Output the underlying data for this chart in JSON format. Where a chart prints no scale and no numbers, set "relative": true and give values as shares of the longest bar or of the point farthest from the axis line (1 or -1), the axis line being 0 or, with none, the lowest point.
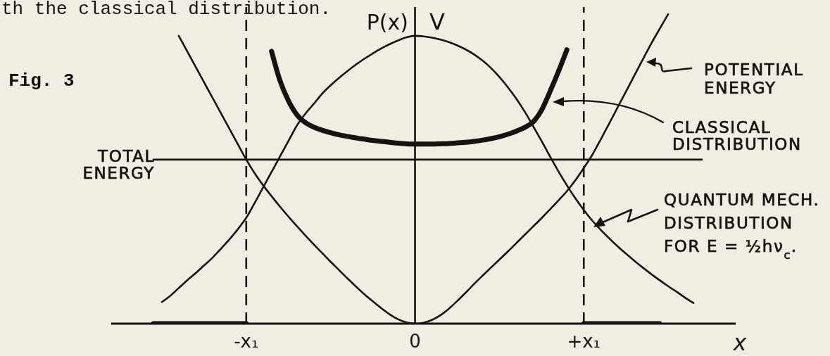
{
  "chart_data": {
    "type": "line",
    "relative": true,
    "legend": "right",
    "annotations": [
      "th the classical distribution.",
      "Fig. 3",
      "V"
    ],
    "ylabel": "P(x)",
    "xlabel": "x",
    "categories": [
      null,
      null,
      null,
      null,
      null,
      null,
      null,
      null,
      null,
      null,
      null,
      null,
      null,
      null,
      null,
      null,
      "-x₁",
      null,
      null,
      null,
      null,
      null,
      null,
      null,
      null,
      null,
      null,
      null,
      null,
      null,
      null,
      null,
      null,
      null,
      null,
      null,
      "0",
      null,
      null,
      null,
      null,
      null,
      null,
      null,
      null,
      null,
      null,
      null,
      null,
      null,
      null,
      null,
      null,
      null,
      null,
      null,
      "+x₁",
      null,
      null,
      null,
      null,
      null,
      null,
      null,
      null,
      null,
      null,
      null,
      null,
      null,
      null,
      null,
      null,
      null,
      null
    ],
    "series": [
      {
        "name": "POTENTIAL ENERGY",
        "color": "#151311",
        "values": [
          null,
          null,
          null,
          null,
          null,
          null,
          null,
          null,
          0.93,
          0.88,
          0.83,
          0.78,
          0.73,
          0.68,
          0.63,
          0.58,
          0.53,
          0.486,
          0.447,
          0.412,
          0.378,
          0.346,
          0.315,
          0.285,
          0.256,
          0.228,
          0.2,
          0.173,
          0.146,
          0.12,
          0.095,
          0.072,
          0.05,
          0.03,
          0.014,
          0.004,
          0,
          0.003,
          0.012,
          0.027,
          0.048,
          0.073,
          0.1,
          0.128,
          0.155,
          0.181,
          0.207,
          0.233,
          0.26,
          0.287,
          0.314,
          0.341,
          0.369,
          0.398,
          0.428,
          0.463,
          0.503,
          0.545,
          0.595,
          0.646,
          0.698,
          0.75,
          0.802,
          0.854,
          0.905,
          0.953,
          1.0,
          null,
          null,
          null,
          null,
          null,
          null,
          null,
          null
        ]
      },
      {
        "name": "CLASSICAL DISTRIBUTION",
        "color": "#151311",
        "values": [
          null,
          null,
          null,
          null,
          null,
          0,
          0,
          0,
          0,
          0,
          0,
          0,
          0,
          0,
          0,
          0,
          0,
          null,
          null,
          0.88,
          0.785,
          0.72,
          0.675,
          0.65,
          0.635,
          0.625,
          0.617,
          0.61,
          0.605,
          0.6,
          0.596,
          0.592,
          0.589,
          0.586,
          0.583,
          0.581,
          0.58,
          0.58,
          0.58,
          0.581,
          0.582,
          0.584,
          0.586,
          0.589,
          0.593,
          0.598,
          0.604,
          0.612,
          0.622,
          0.634,
          0.652,
          0.69,
          0.75,
          0.815,
          0.885,
          null,
          0,
          0,
          0,
          0,
          0,
          0,
          0,
          0,
          0,
          0,
          null,
          null,
          null,
          null,
          null,
          null,
          null,
          null,
          null
        ]
      },
      {
        "name": "QUANTUM MECH. DISTRIBUTION FOR E = ½hν$_{c}$.",
        "color": "#151311",
        "values": [
          null,
          null,
          null,
          null,
          null,
          null,
          0.07,
          0.09,
          0.115,
          0.14,
          0.163,
          0.188,
          0.213,
          0.242,
          0.272,
          0.305,
          0.342,
          0.39,
          0.44,
          0.49,
          0.54,
          0.59,
          0.64,
          0.678,
          0.71,
          0.743,
          0.77,
          0.794,
          0.816,
          0.837,
          0.856,
          0.873,
          0.889,
          0.903,
          0.915,
          0.925,
          0.93,
          0.928,
          0.924,
          0.918,
          0.91,
          0.899,
          0.886,
          0.87,
          0.85,
          0.826,
          0.797,
          0.764,
          0.727,
          0.685,
          0.638,
          0.59,
          0.54,
          0.492,
          0.447,
          0.405,
          0.367,
          0.333,
          0.303,
          0.276,
          0.25,
          0.226,
          0.203,
          0.181,
          0.16,
          0.14,
          0.121,
          0.103,
          0.084,
          0.067,
          null,
          null,
          null,
          null,
          null
        ]
      },
      {
        "name": "TOTAL ENERGY",
        "color": "#151311",
        "values": [
          null,
          null,
          null,
          null,
          null,
          0.53,
          0.53,
          0.53,
          0.53,
          0.53,
          0.53,
          0.53,
          0.53,
          0.53,
          0.53,
          0.53,
          0.53,
          0.53,
          0.53,
          0.53,
          0.53,
          0.53,
          0.53,
          0.53,
          0.53,
          0.53,
          0.53,
          0.53,
          0.53,
          0.53,
          0.53,
          0.53,
          0.53,
          0.53,
          0.53,
          0.53,
          0.53,
          0.53,
          0.53,
          0.53,
          0.53,
          0.53,
          0.53,
          0.53,
          0.53,
          0.53,
          0.53,
          0.53,
          0.53,
          0.53,
          0.53,
          0.53,
          0.53,
          0.53,
          0.53,
          0.53,
          0.53,
          0.53,
          0.53,
          0.53,
          0.53,
          0.53,
          0.53,
          0.53,
          0.53,
          0.53,
          0.53,
          0.53,
          0.53,
          0.53,
          0.53,
          null,
          null,
          null,
          null
        ]
      }
    ],
    "ref_lines": [
      {
        "axis": "x",
        "value": "0"
      },
      {
        "axis": "x",
        "value": "-x₁",
        "line_style": "dashed"
      },
      {
        "axis": "x",
        "value": "+x₁",
        "line_style": "dashed"
      }
    ]
  }
}
